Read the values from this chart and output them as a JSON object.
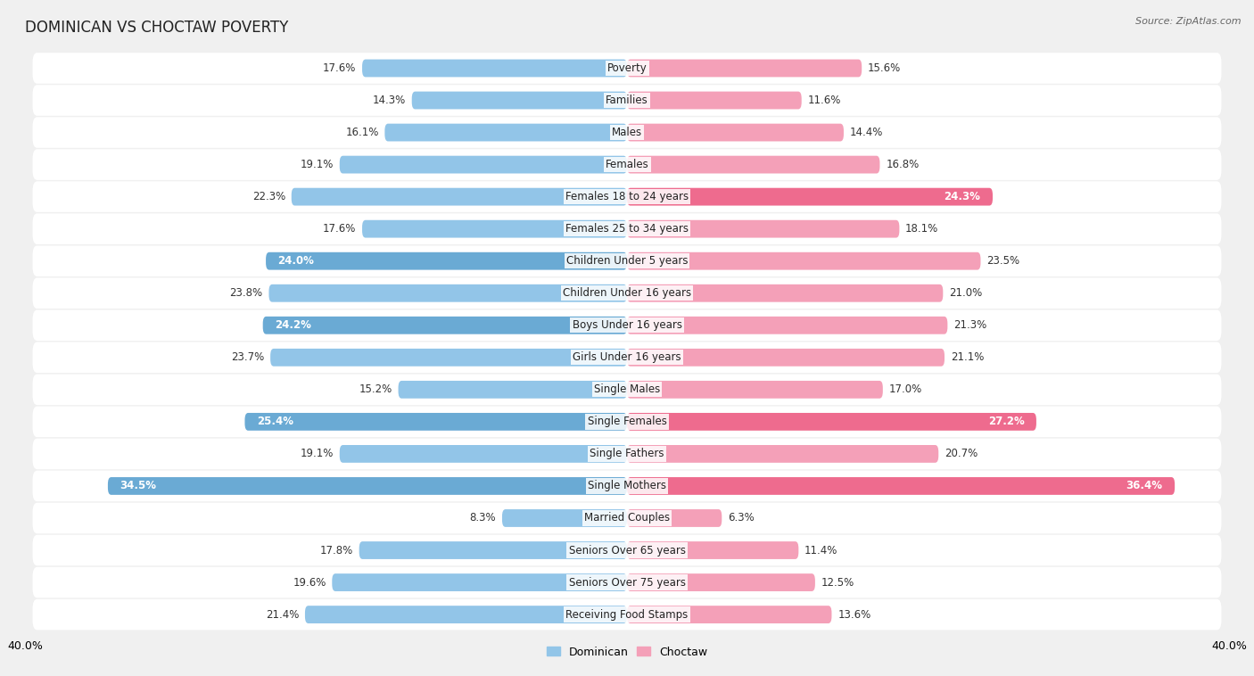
{
  "title": "DOMINICAN VS CHOCTAW POVERTY",
  "source": "Source: ZipAtlas.com",
  "categories": [
    "Poverty",
    "Families",
    "Males",
    "Females",
    "Females 18 to 24 years",
    "Females 25 to 34 years",
    "Children Under 5 years",
    "Children Under 16 years",
    "Boys Under 16 years",
    "Girls Under 16 years",
    "Single Males",
    "Single Females",
    "Single Fathers",
    "Single Mothers",
    "Married Couples",
    "Seniors Over 65 years",
    "Seniors Over 75 years",
    "Receiving Food Stamps"
  ],
  "dominican": [
    17.6,
    14.3,
    16.1,
    19.1,
    22.3,
    17.6,
    24.0,
    23.8,
    24.2,
    23.7,
    15.2,
    25.4,
    19.1,
    34.5,
    8.3,
    17.8,
    19.6,
    21.4
  ],
  "choctaw": [
    15.6,
    11.6,
    14.4,
    16.8,
    24.3,
    18.1,
    23.5,
    21.0,
    21.3,
    21.1,
    17.0,
    27.2,
    20.7,
    36.4,
    6.3,
    11.4,
    12.5,
    13.6
  ],
  "dominican_color_normal": "#92C5E8",
  "dominican_color_highlight": "#6AAAD4",
  "choctaw_color_normal": "#F4A0B8",
  "choctaw_color_highlight": "#EE6B8E",
  "dominican_label_inside": [
    6,
    8,
    11,
    13
  ],
  "choctaw_label_inside": [
    4,
    11,
    13
  ],
  "background_color": "#f0f0f0",
  "row_bg_color": "#ffffff",
  "row_alt_color": "#e8e8e8",
  "x_axis_label_left": "40.0%",
  "x_axis_label_right": "40.0%",
  "label_fontsize": 8.5,
  "title_fontsize": 12,
  "value_fontsize": 8.5
}
